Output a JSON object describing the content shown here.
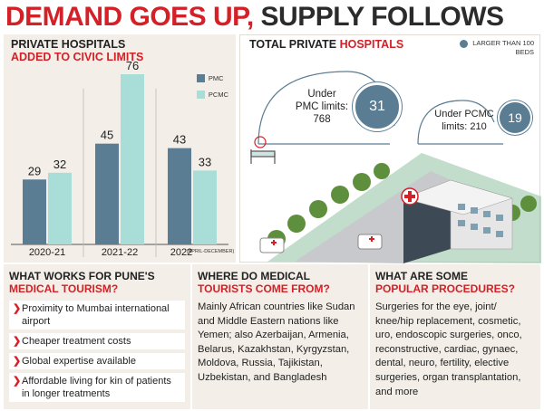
{
  "headline": {
    "red": "DEMAND GOES UP,",
    "dark": "SUPPLY FOLLOWS"
  },
  "chart_panel": {
    "title_line1": "PRIVATE HOSPITALS",
    "title_line2": "ADDED TO CIVIC LIMITS",
    "legend": [
      {
        "label": "PMC",
        "color": "#5b7d93"
      },
      {
        "label": "PCMC",
        "color": "#a9ddd8"
      }
    ]
  },
  "chart_data": {
    "type": "bar",
    "categories": [
      "2020-21",
      "2021-22",
      "2022"
    ],
    "category_note": "(APRIL-DECEMBER)",
    "series": [
      {
        "name": "PMC",
        "values": [
          29,
          45,
          43
        ]
      },
      {
        "name": "PCMC",
        "values": [
          32,
          76,
          33
        ]
      }
    ],
    "ylim": [
      0,
      76
    ],
    "colors": [
      "#5b7d93",
      "#a9ddd8"
    ]
  },
  "total_panel": {
    "title_dark": "TOTAL PRIVATE",
    "title_red": "HOSPITALS",
    "legend_label": "LARGER THAN 100 BEDS",
    "pmc": {
      "label_line1": "Under",
      "label_line2": "PMC limits:",
      "count": "768",
      "large": "31"
    },
    "pcmc": {
      "label_line1": "Under PCMC",
      "label_line2": "limits: 210",
      "large": "19"
    }
  },
  "columns": [
    {
      "title_dark": "WHAT WORKS FOR PUNE'S",
      "title_red": "MEDICAL TOURISM?",
      "bullets": [
        "Proximity to Mumbai international airport",
        "Cheaper treatment costs",
        "Global expertise available",
        "Affordable living for kin of patients in longer treatments"
      ]
    },
    {
      "title_dark": "WHERE DO MEDICAL",
      "title_red": "TOURISTS COME FROM?",
      "body": "Mainly African countries like Sudan and Middle Eastern nations like Yemen; also Azerbaijan, Armenia, Belarus, Kazakhstan, Kyrgyzstan, Moldova, Russia, Tajikistan, Uzbekistan, and Bangladesh"
    },
    {
      "title_dark": "WHAT ARE SOME",
      "title_red": "POPULAR PROCEDURES?",
      "body": "Surgeries for the eye, joint/ knee/hip replacement, cosmetic, uro, endoscopic surgeries, onco, reconstructive, cardiac, gynaec, dental, neuro, fertility, elective surgeries, organ transplantation, and more"
    }
  ]
}
